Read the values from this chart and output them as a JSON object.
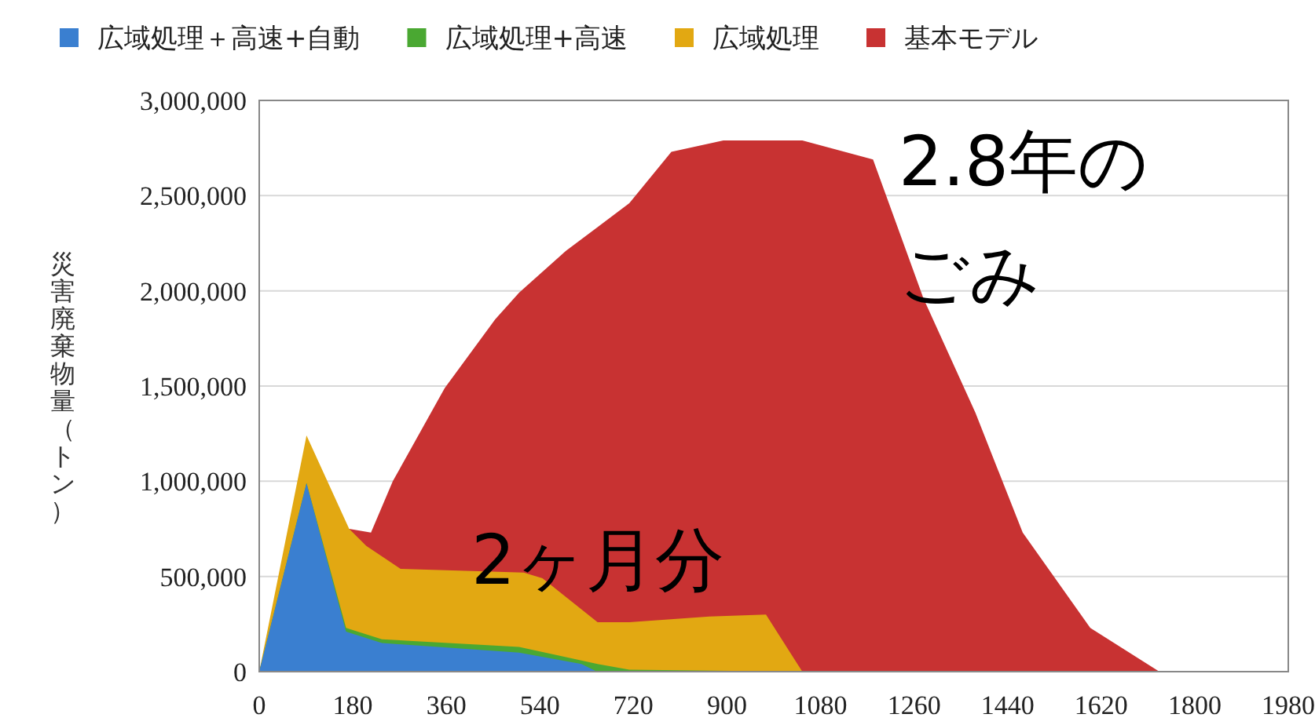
{
  "chart_data": {
    "type": "area",
    "ylabel": "災害廃棄物量（トン）",
    "legend": "top",
    "grid": "y",
    "xlim": [
      0,
      1980
    ],
    "xticks": [
      0,
      180,
      360,
      540,
      720,
      900,
      1080,
      1260,
      1440,
      1620,
      1800,
      1980
    ],
    "ylim": [
      0,
      3000000
    ],
    "yticks": [
      {
        "value": 0,
        "label": "0"
      },
      {
        "value": 500000,
        "label": "500,000"
      },
      {
        "value": 1000000,
        "label": "1,000,000"
      },
      {
        "value": 1500000,
        "label": "1,500,000"
      },
      {
        "value": 2000000,
        "label": "2,000,000"
      },
      {
        "value": 2500000,
        "label": "2,500,000"
      },
      {
        "value": 3000000,
        "label": "3,000,000"
      }
    ],
    "annotations": [
      "2ヶ月分",
      "2.8年の",
      "ごみ"
    ],
    "series": [
      {
        "name": "広域処理＋高速+自動",
        "color": "#3a7fd0",
        "x": [
          0,
          91,
          167,
          236,
          500,
          620,
          650
        ],
        "values": [
          0,
          990000,
          210000,
          150000,
          100000,
          40000,
          0
        ]
      },
      {
        "name": "広域処理+高速",
        "color": "#4aa832",
        "x": [
          0,
          91,
          167,
          236,
          500,
          651,
          712,
          1045
        ],
        "values": [
          0,
          990000,
          230000,
          170000,
          130000,
          40000,
          10000,
          0
        ]
      },
      {
        "name": "広域処理",
        "color": "#e2a812",
        "x": [
          0,
          91,
          173,
          206,
          272,
          509,
          545,
          651,
          712,
          866,
          975,
          1045
        ],
        "values": [
          0,
          1240000,
          750000,
          660000,
          540000,
          520000,
          490000,
          260000,
          260000,
          290000,
          300000,
          0
        ]
      },
      {
        "name": "基本モデル",
        "color": "#c83232",
        "x": [
          0,
          91,
          173,
          215,
          257,
          357,
          454,
          500,
          590,
          712,
          793,
          893,
          1045,
          1181,
          1278,
          1378,
          1469,
          1599,
          1732
        ],
        "values": [
          0,
          null,
          750000,
          730000,
          1000000,
          1490000,
          1850000,
          1990000,
          2210000,
          2460000,
          2730000,
          2790000,
          2790000,
          2690000,
          1960000,
          1360000,
          730000,
          230000,
          0
        ]
      }
    ]
  }
}
